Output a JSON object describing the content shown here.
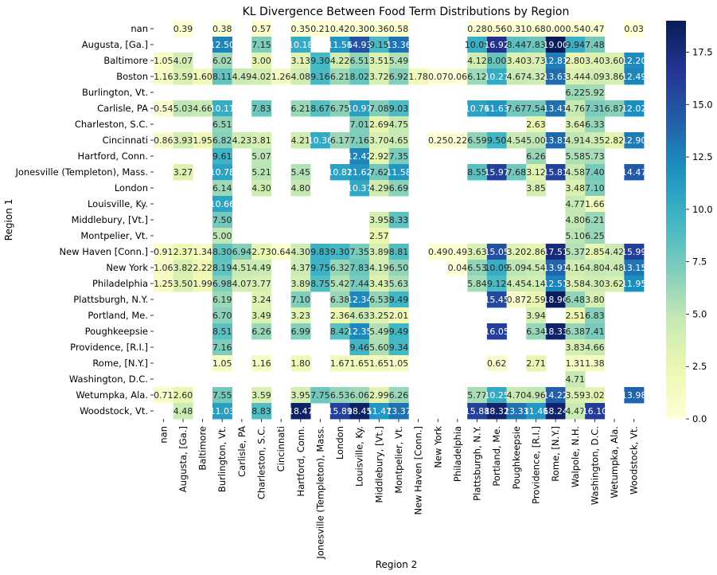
{
  "chart_data": {
    "type": "heatmap",
    "title": "KL Divergence Between Food Term Distributions by Region",
    "xlabel": "Region 2",
    "ylabel": "Region 1",
    "rows": [
      "nan",
      "Augusta, [Ga.]",
      "Baltimore",
      "Boston",
      "Burlington, Vt.",
      "Carlisle, PA",
      "Charleston, S.C.",
      "Cincinnati",
      "Hartford, Conn.",
      "Jonesville (Templeton), Mass.",
      "London",
      "Louisville, Ky.",
      "Middlebury, [Vt.]",
      "Montpelier, Vt.",
      "New Haven [Conn.]",
      "New York",
      "Philadelphia",
      "Plattsburgh, N.Y.",
      "Portland, Me.",
      "Poughkeepsie",
      "Providence, [R.I.]",
      "Rome, [N.Y.]",
      "Washington, D.C.",
      "Wetumpka, Ala.",
      "Woodstock, Vt."
    ],
    "columns": [
      "nan",
      "Augusta, [Ga.]",
      "Baltimore",
      "Burlington, Vt.",
      "Carlisle, PA",
      "Charleston, S.C.",
      "Cincinnati",
      "Hartford, Conn.",
      "Jonesville (Templeton), Mass.",
      "London",
      "Louisville, Ky.",
      "Middlebury, [Vt.]",
      "Montpelier, Vt.",
      "New Haven [Conn.]",
      "New York",
      "Philadelphia",
      "Plattsburgh, N.Y.",
      "Portland, Me.",
      "Poughkeepsie",
      "Providence, [R.I.]",
      "Rome, [N.Y.]",
      "Walpole, N.H.",
      "Washington, D.C.",
      "Wetumpka, Ala.",
      "Woodstock, Vt."
    ],
    "values": [
      [
        null,
        0.39,
        null,
        0.38,
        null,
        0.57,
        null,
        0.35,
        0.21,
        0.42,
        0.3,
        0.36,
        0.58,
        null,
        null,
        null,
        0.28,
        0.56,
        0.31,
        0.68,
        0.0,
        0.54,
        0.47,
        null,
        0.03
      ],
      [
        null,
        null,
        null,
        12.5,
        null,
        7.15,
        null,
        10.18,
        null,
        11.56,
        14.93,
        9.15,
        13.36,
        null,
        null,
        null,
        10.05,
        16.92,
        8.44,
        7.83,
        19.0,
        9.94,
        7.48,
        null,
        null
      ],
      [
        1.05,
        4.07,
        null,
        6.02,
        null,
        3.0,
        null,
        3.13,
        9.3,
        4.22,
        6.51,
        3.51,
        5.49,
        null,
        null,
        null,
        4.12,
        8.0,
        3.4,
        3.73,
        12.81,
        2.8,
        3.4,
        3.6,
        12.2
      ],
      [
        1.16,
        3.59,
        1.6,
        8.11,
        4.49,
        4.02,
        1.26,
        4.08,
        9.16,
        6.21,
        8.02,
        3.72,
        6.92,
        1.78,
        0.07,
        0.06,
        6.12,
        10.27,
        4.67,
        4.32,
        13.63,
        3.44,
        4.09,
        3.86,
        12.49
      ],
      [
        null,
        null,
        null,
        null,
        null,
        null,
        null,
        null,
        null,
        null,
        null,
        null,
        null,
        null,
        null,
        null,
        null,
        null,
        null,
        null,
        null,
        6.22,
        5.92,
        null,
        null
      ],
      [
        0.54,
        5.03,
        4.66,
        10.11,
        null,
        7.83,
        null,
        6.21,
        8.67,
        6.75,
        10.97,
        7.08,
        9.03,
        null,
        null,
        null,
        10.76,
        11.63,
        7.67,
        7.54,
        13.41,
        4.76,
        7.31,
        6.87,
        12.02
      ],
      [
        null,
        null,
        null,
        6.51,
        null,
        null,
        null,
        null,
        null,
        null,
        7.01,
        2.69,
        4.75,
        null,
        null,
        null,
        null,
        null,
        null,
        2.63,
        null,
        3.64,
        6.33,
        null,
        null
      ],
      [
        0.86,
        3.93,
        1.95,
        6.82,
        4.23,
        3.81,
        null,
        4.21,
        10.36,
        6.17,
        7.16,
        3.7,
        4.65,
        null,
        0.25,
        0.22,
        6.59,
        9.5,
        4.54,
        5.0,
        13.81,
        4.91,
        4.35,
        2.82,
        12.9
      ],
      [
        null,
        null,
        null,
        9.61,
        null,
        5.07,
        null,
        null,
        null,
        null,
        12.42,
        2.92,
        7.35,
        null,
        null,
        null,
        null,
        null,
        null,
        6.26,
        null,
        5.58,
        5.73,
        null,
        null
      ],
      [
        null,
        3.27,
        null,
        10.78,
        null,
        5.21,
        null,
        5.45,
        null,
        10.82,
        11.62,
        7.62,
        11.58,
        null,
        null,
        null,
        8.55,
        15.97,
        7.68,
        3.12,
        15.81,
        4.58,
        7.4,
        null,
        14.47
      ],
      [
        null,
        null,
        null,
        6.14,
        null,
        4.3,
        null,
        4.8,
        null,
        null,
        10.37,
        4.29,
        6.69,
        null,
        null,
        null,
        null,
        null,
        null,
        3.85,
        null,
        3.48,
        7.1,
        null,
        null
      ],
      [
        null,
        null,
        null,
        10.66,
        null,
        null,
        null,
        null,
        null,
        null,
        null,
        null,
        null,
        null,
        null,
        null,
        null,
        null,
        null,
        null,
        null,
        4.77,
        1.66,
        null,
        null
      ],
      [
        null,
        null,
        null,
        7.5,
        null,
        null,
        null,
        null,
        null,
        null,
        null,
        3.95,
        8.33,
        null,
        null,
        null,
        null,
        null,
        null,
        null,
        null,
        4.8,
        6.21,
        null,
        null
      ],
      [
        null,
        null,
        null,
        5.0,
        null,
        null,
        null,
        null,
        null,
        null,
        null,
        2.57,
        null,
        null,
        null,
        null,
        null,
        null,
        null,
        null,
        null,
        5.1,
        6.25,
        null,
        null
      ],
      [
        0.91,
        2.37,
        1.34,
        8.3,
        6.94,
        2.73,
        0.64,
        4.3,
        9.83,
        9.3,
        7.35,
        3.89,
        8.81,
        null,
        0.49,
        0.49,
        3.63,
        15.05,
        3.2,
        2.86,
        17.51,
        5.37,
        2.85,
        4.42,
        15.99
      ],
      [
        1.06,
        3.82,
        2.22,
        8.19,
        4.51,
        4.49,
        null,
        4.37,
        9.75,
        6.32,
        7.83,
        4.19,
        6.5,
        null,
        null,
        0.04,
        6.53,
        10.09,
        5.09,
        4.54,
        13.91,
        4.16,
        4.8,
        4.48,
        13.15
      ],
      [
        1.25,
        3.5,
        1.99,
        6.98,
        4.07,
        3.77,
        null,
        3.89,
        8.75,
        5.42,
        7.44,
        3.43,
        5.63,
        null,
        null,
        null,
        5.84,
        9.12,
        4.45,
        4.14,
        12.51,
        3.58,
        4.3,
        3.62,
        11.95
      ],
      [
        null,
        null,
        null,
        6.19,
        null,
        3.24,
        null,
        7.1,
        null,
        6.38,
        12.34,
        6.53,
        9.49,
        null,
        null,
        null,
        null,
        15.45,
        0.87,
        2.59,
        18.96,
        6.48,
        3.8,
        null,
        null
      ],
      [
        null,
        null,
        null,
        6.7,
        null,
        3.49,
        null,
        3.23,
        null,
        2.36,
        4.63,
        3.25,
        2.01,
        null,
        null,
        null,
        null,
        null,
        null,
        3.94,
        null,
        2.51,
        6.83,
        null,
        null
      ],
      [
        null,
        null,
        null,
        8.51,
        null,
        6.26,
        null,
        6.99,
        null,
        8.42,
        12.35,
        5.49,
        9.49,
        null,
        null,
        null,
        null,
        16.05,
        null,
        6.34,
        18.33,
        6.38,
        7.41,
        null,
        null
      ],
      [
        null,
        null,
        null,
        7.16,
        null,
        null,
        null,
        null,
        null,
        null,
        9.46,
        5.6,
        9.34,
        null,
        null,
        null,
        null,
        null,
        null,
        null,
        null,
        3.83,
        4.66,
        null,
        null
      ],
      [
        null,
        null,
        null,
        1.05,
        null,
        1.16,
        null,
        1.8,
        null,
        1.67,
        1.65,
        1.65,
        1.05,
        null,
        null,
        null,
        null,
        0.62,
        null,
        2.71,
        null,
        1.31,
        1.38,
        null,
        null
      ],
      [
        null,
        null,
        null,
        null,
        null,
        null,
        null,
        null,
        null,
        null,
        null,
        null,
        null,
        null,
        null,
        null,
        null,
        null,
        null,
        null,
        null,
        4.71,
        null,
        null,
        null
      ],
      [
        0.71,
        2.6,
        null,
        7.55,
        null,
        3.59,
        null,
        3.95,
        7.75,
        6.53,
        6.06,
        2.99,
        6.26,
        null,
        null,
        null,
        5.77,
        10.25,
        4.7,
        4.96,
        14.22,
        3.59,
        3.02,
        null,
        13.98
      ],
      [
        null,
        4.48,
        null,
        11.03,
        null,
        8.83,
        null,
        18.47,
        null,
        15.89,
        18.45,
        11.47,
        13.37,
        null,
        null,
        null,
        15.88,
        18.32,
        13.33,
        11.46,
        18.24,
        4.47,
        16.1,
        null,
        null
      ]
    ],
    "colorbar": {
      "colormap": "YlGnBu",
      "min": 0.0,
      "max": 19.0,
      "ticks": [
        "0.0",
        "2.5",
        "5.0",
        "7.5",
        "10.0",
        "12.5",
        "15.0",
        "17.5"
      ]
    }
  }
}
